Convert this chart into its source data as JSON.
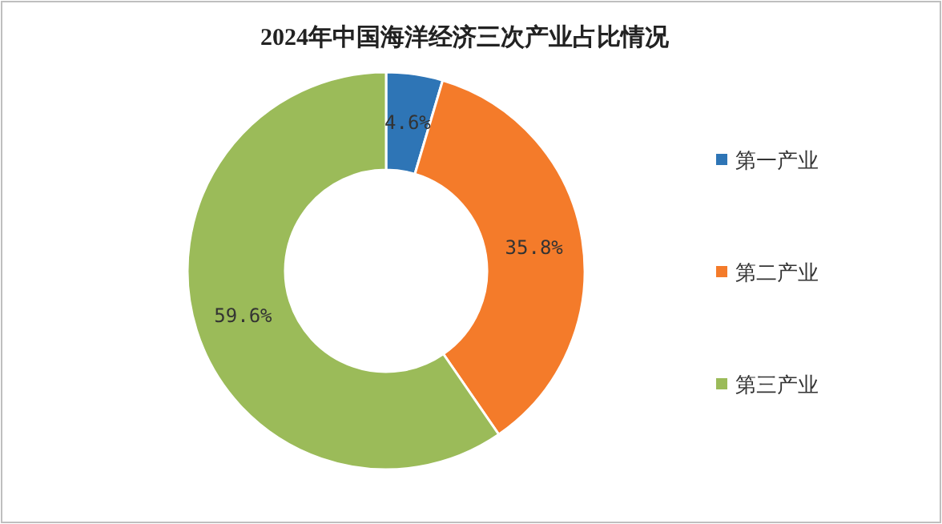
{
  "chart_data": {
    "type": "donut",
    "title": "2024年中国海洋经济三次产业占比情况",
    "categories": [
      "第一产业",
      "第二产业",
      "第三产业"
    ],
    "values": [
      4.6,
      35.8,
      59.6
    ],
    "colors": [
      "#2e75b6",
      "#f47b2a",
      "#9bbb59"
    ],
    "value_labels": [
      "4.6%",
      "35.8%",
      "59.6%"
    ],
    "legend": "right"
  }
}
